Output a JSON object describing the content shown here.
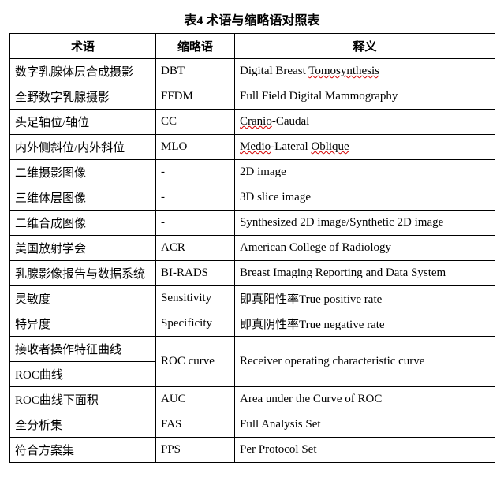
{
  "title": "表4  术语与缩略语对照表",
  "columns": [
    "术语",
    "缩略语",
    "释义"
  ],
  "rows": [
    {
      "term": "数字乳腺体层合成摄影",
      "abbr": "DBT",
      "def": [
        {
          "t": "Digital Breast "
        },
        {
          "t": "Tomosynthesis",
          "wavy": true
        }
      ]
    },
    {
      "term": "全野数字乳腺摄影",
      "abbr": "FFDM",
      "def": [
        {
          "t": "Full Field Digital Mammography"
        }
      ]
    },
    {
      "term": "头足轴位/轴位",
      "abbr": "CC",
      "def": [
        {
          "t": "Cranio",
          "wavy": true
        },
        {
          "t": "-Caudal"
        }
      ]
    },
    {
      "term": "内外侧斜位/内外斜位",
      "abbr": "MLO",
      "def": [
        {
          "t": "Medio",
          "wavy": true
        },
        {
          "t": "-Lateral "
        },
        {
          "t": "Oblique",
          "wavy": true
        }
      ]
    },
    {
      "term": "二维摄影图像",
      "abbr": "-",
      "def": [
        {
          "t": "2D image"
        }
      ]
    },
    {
      "term": "三维体层图像",
      "abbr": "-",
      "def": [
        {
          "t": "3D slice image"
        }
      ]
    },
    {
      "term": "二维合成图像",
      "abbr": "-",
      "def": [
        {
          "t": "Synthesized 2D image/Synthetic 2D image"
        }
      ],
      "justify": true
    },
    {
      "term": "美国放射学会",
      "abbr": "ACR",
      "def": [
        {
          "t": "American College of Radiology"
        }
      ]
    },
    {
      "term": "乳腺影像报告与数据系统",
      "abbr": "BI-RADS",
      "def": [
        {
          "t": "Breast Imaging Reporting and Data System"
        }
      ],
      "justify": true
    },
    {
      "term": "灵敏度",
      "abbr": "Sensitivity",
      "def": [
        {
          "t": "即真阳性率True positive rate"
        }
      ]
    },
    {
      "term": "特异度",
      "abbr": "Specificity",
      "def": [
        {
          "t": "即真阴性率True negative rate"
        }
      ]
    },
    {
      "merge": [
        {
          "term": "接收者操作特征曲线"
        },
        {
          "term": "ROC曲线"
        }
      ],
      "abbr": "ROC curve",
      "def": [
        {
          "t": "Receiver operating characteristic curve"
        }
      ]
    },
    {
      "term": "ROC曲线下面积",
      "abbr": "AUC",
      "def": [
        {
          "t": "Area under the Curve of ROC"
        }
      ]
    },
    {
      "term": "全分析集",
      "abbr": "FAS",
      "def": [
        {
          "t": "Full Analysis Set"
        }
      ]
    },
    {
      "term": "符合方案集",
      "abbr": "PPS",
      "def": [
        {
          "t": "Per Protocol Set"
        }
      ]
    }
  ],
  "style": {
    "wavy_color": "#d40000",
    "border_color": "#000000",
    "background": "#ffffff",
    "text_color": "#000000",
    "font_size_pt": 11
  }
}
